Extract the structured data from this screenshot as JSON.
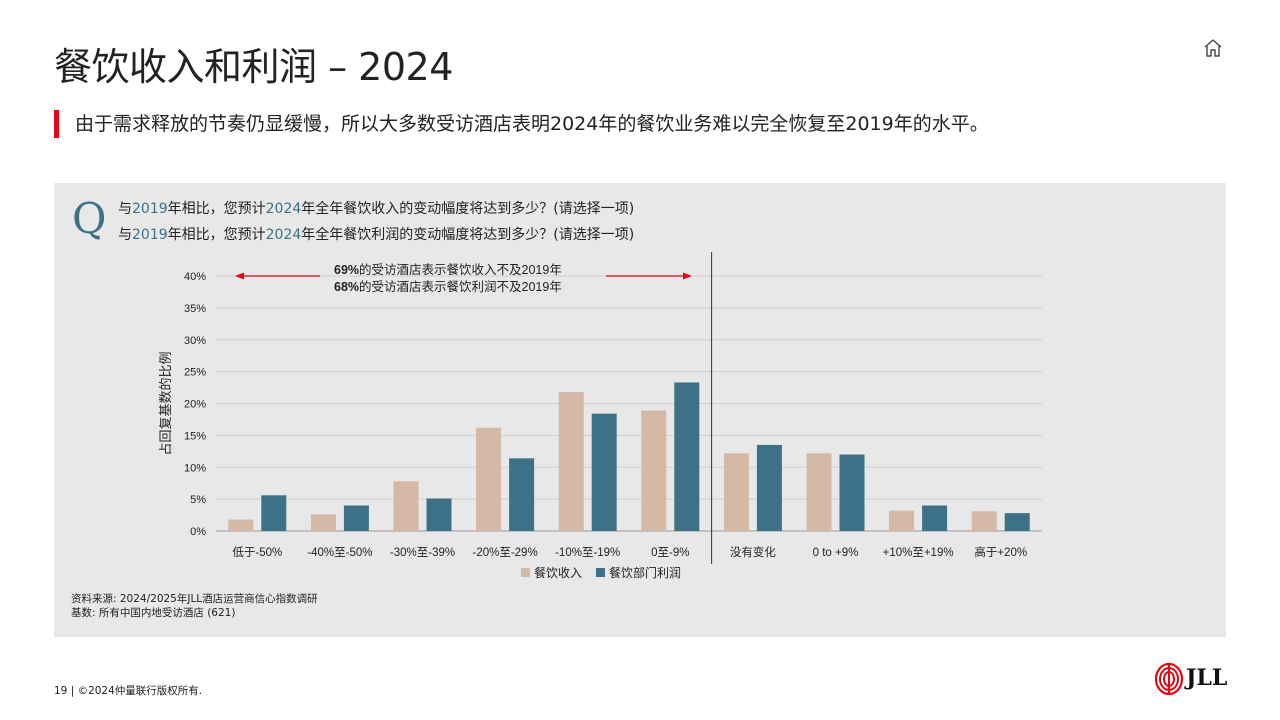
{
  "title": "餐饮收入和利润 – 2024",
  "subtitle": "由于需求释放的节奏仍显缓慢，所以大多数受访酒店表明2024年的餐饮业务难以完全恢复至2019年的水平。",
  "question": {
    "mark": "Q",
    "line1": {
      "a": "与",
      "y1": "2019",
      "b": "年相比，您预计",
      "y2": "2024",
      "c": "年全年餐饮收入的变动幅度将达到多少？(请选择一项)"
    },
    "line2": {
      "a": "与",
      "y1": "2019",
      "b": "年相比，您预计",
      "y2": "2024",
      "c": "年全年餐饮利润的变动幅度将达到多少？(请选择一项)"
    }
  },
  "chart_data": {
    "type": "bar",
    "categories": [
      "低于-50%",
      "-40%至-50%",
      "-30%至-39%",
      "-20%至-29%",
      "-10%至-19%",
      "0至-9%",
      "没有变化",
      "0 to +9%",
      "+10%至+19%",
      "高于+20%"
    ],
    "series": [
      {
        "name": "餐饮收入",
        "color": "#d4b9a6",
        "values": [
          1.8,
          2.6,
          7.8,
          16.2,
          21.8,
          18.9,
          12.2,
          12.2,
          3.2,
          3.1
        ]
      },
      {
        "name": "餐饮部门利润",
        "color": "#3d7188",
        "values": [
          5.6,
          4.0,
          5.1,
          11.4,
          18.4,
          23.3,
          13.5,
          12.0,
          4.0,
          2.8
        ]
      }
    ],
    "ylabel": "占回复基数的比例",
    "ylim": [
      0,
      40
    ],
    "yticks": [
      "0%",
      "5%",
      "10%",
      "15%",
      "20%",
      "25%",
      "30%",
      "35%",
      "40%"
    ],
    "grid": true,
    "legend": "bottom",
    "annotation": {
      "line1_bold": "69%",
      "line1_rest": "的受访酒店表示餐饮收入不及2019年",
      "line2_bold": "68%",
      "line2_rest": "的受访酒店表示餐饮利润不及2019年"
    }
  },
  "source": {
    "line1": "资料来源: 2024/2025年JLL酒店运营商信心指数调研",
    "line2": "基数: 所有中国内地受访酒店 (621)"
  },
  "footer": "19 | ©2024仲量联行版权所有.",
  "logo_text": "JLL",
  "colors": {
    "accent_red": "#e30613",
    "teal": "#3d7188",
    "tan": "#d4b9a6",
    "panel": "#e8e8e8"
  }
}
